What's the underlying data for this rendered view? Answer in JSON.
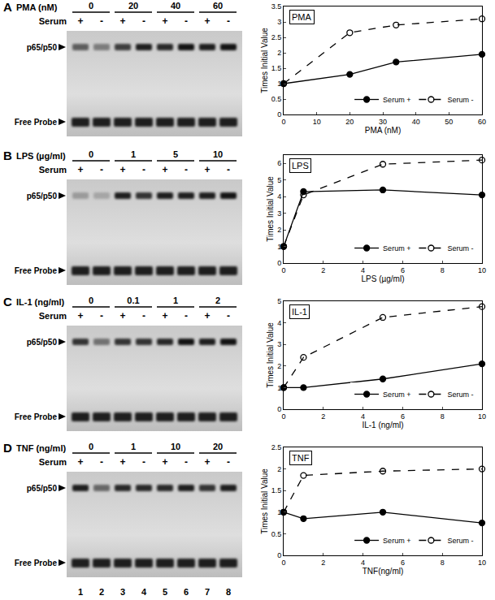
{
  "chart_data": [
    {
      "type": "line",
      "title": "PMA",
      "x_label": "PMA (nM)",
      "y_label": "Times Initial Value",
      "x": [
        0,
        20,
        34,
        60
      ],
      "xlim": [
        0,
        60
      ],
      "xticks": [
        0,
        10,
        20,
        30,
        40,
        50,
        60
      ],
      "ylim": [
        0,
        3.5
      ],
      "yticks": [
        0,
        0.5,
        1,
        1.5,
        2,
        2.5,
        3,
        3.5
      ],
      "grid": false,
      "legend": "bottom right",
      "series": [
        {
          "name": "Serum +",
          "color": "#000000",
          "marker": "filled circle",
          "line_style": "solid",
          "values": [
            1,
            1.3,
            1.7,
            1.95
          ]
        },
        {
          "name": "Serum -",
          "color": "#000000",
          "marker": "open circle",
          "line_style": "dashed",
          "values": [
            1,
            2.65,
            2.9,
            3.1
          ]
        }
      ]
    },
    {
      "type": "line",
      "title": "LPS",
      "x_label": "LPS (µg/ml)",
      "y_label": "Times Initial Value",
      "x": [
        0,
        1,
        5,
        10
      ],
      "xlim": [
        0,
        10
      ],
      "xticks": [
        0,
        2,
        4,
        6,
        8,
        10
      ],
      "ylim": [
        0,
        6.5
      ],
      "yticks": [
        0,
        1,
        2,
        3,
        4,
        5,
        6
      ],
      "grid": false,
      "legend": "bottom right",
      "series": [
        {
          "name": "Serum +",
          "color": "#000000",
          "marker": "filled circle",
          "line_style": "solid",
          "values": [
            1,
            4.3,
            4.4,
            4.1
          ]
        },
        {
          "name": "Serum -",
          "color": "#000000",
          "marker": "open circle",
          "line_style": "dashed",
          "values": [
            1,
            4.1,
            5.95,
            6.2
          ]
        }
      ]
    },
    {
      "type": "line",
      "title": "IL-1",
      "x_label": "IL-1 (ng/ml)",
      "y_label": "Times Initial Value",
      "x": [
        0,
        1,
        5,
        10
      ],
      "xlim": [
        0,
        10
      ],
      "xticks": [
        0,
        2,
        4,
        6,
        8,
        10
      ],
      "ylim": [
        0,
        5
      ],
      "yticks": [
        0,
        1,
        2,
        3,
        4,
        5
      ],
      "grid": false,
      "legend": "bottom right",
      "series": [
        {
          "name": "Serum +",
          "color": "#000000",
          "marker": "filled circle",
          "line_style": "solid",
          "values": [
            1,
            1,
            1.4,
            2.1
          ]
        },
        {
          "name": "Serum -",
          "color": "#000000",
          "marker": "open circle",
          "line_style": "dashed",
          "values": [
            1,
            2.4,
            4.25,
            4.75
          ]
        }
      ]
    },
    {
      "type": "line",
      "title": "TNF",
      "x_label": "TNF(ng/ml)",
      "y_label": "Times Initial Value",
      "x": [
        0,
        1,
        5,
        10
      ],
      "xlim": [
        0,
        10
      ],
      "xticks": [
        0,
        2,
        4,
        6,
        8,
        10
      ],
      "ylim": [
        0,
        2.5
      ],
      "yticks": [
        0,
        0.5,
        1,
        1.5,
        2,
        2.5
      ],
      "grid": false,
      "legend": "bottom right",
      "series": [
        {
          "name": "Serum +",
          "color": "#000000",
          "marker": "filled circle",
          "line_style": "solid",
          "values": [
            1,
            0.85,
            1,
            0.75
          ]
        },
        {
          "name": "Serum -",
          "color": "#000000",
          "marker": "open circle",
          "line_style": "dashed",
          "values": [
            1,
            1.85,
            1.95,
            2
          ]
        }
      ]
    }
  ],
  "gels": [
    {
      "panel": "A",
      "treatment": "PMA (nM)",
      "doses": [
        "0",
        "20",
        "40",
        "60"
      ],
      "serum_label": "Serum",
      "serum": [
        "+",
        "-",
        "+",
        "-",
        "+",
        "-",
        "+",
        "-"
      ],
      "band_label": "p65/p50",
      "probe_label": "Free Probe",
      "band_intensity": [
        0.55,
        0.4,
        0.7,
        0.85,
        0.8,
        0.9,
        0.85,
        0.9
      ]
    },
    {
      "panel": "B",
      "treatment": "LPS (µg/ml)",
      "doses": [
        "0",
        "1",
        "5",
        "10"
      ],
      "serum_label": "Serum",
      "serum": [
        "+",
        "-",
        "+",
        "-",
        "+",
        "-",
        "+",
        "-"
      ],
      "band_label": "p65/p50",
      "probe_label": "Free Probe",
      "band_intensity": [
        0.25,
        0.2,
        0.85,
        0.75,
        0.85,
        0.85,
        0.85,
        0.9
      ]
    },
    {
      "panel": "C",
      "treatment": "IL-1 (ng/ml)",
      "doses": [
        "0",
        "0.1",
        "1",
        "2"
      ],
      "serum_label": "Serum",
      "serum": [
        "+",
        "-",
        "+",
        "-",
        "+",
        "-",
        "+",
        "-"
      ],
      "band_label": "p65/p50",
      "probe_label": "Free Probe",
      "band_intensity": [
        0.75,
        0.45,
        0.75,
        0.75,
        0.8,
        0.9,
        0.85,
        0.9
      ]
    },
    {
      "panel": "D",
      "treatment": "TNF (ng/ml)",
      "doses": [
        "0",
        "1",
        "10",
        "20"
      ],
      "serum_label": "Serum",
      "serum": [
        "+",
        "-",
        "+",
        "-",
        "+",
        "-",
        "+",
        "-"
      ],
      "band_label": "p65/p50",
      "probe_label": "Free Probe",
      "band_intensity": [
        0.85,
        0.5,
        0.8,
        0.8,
        0.8,
        0.85,
        0.75,
        0.85
      ]
    }
  ],
  "lane_numbers": [
    "1",
    "2",
    "3",
    "4",
    "5",
    "6",
    "7",
    "8"
  ]
}
